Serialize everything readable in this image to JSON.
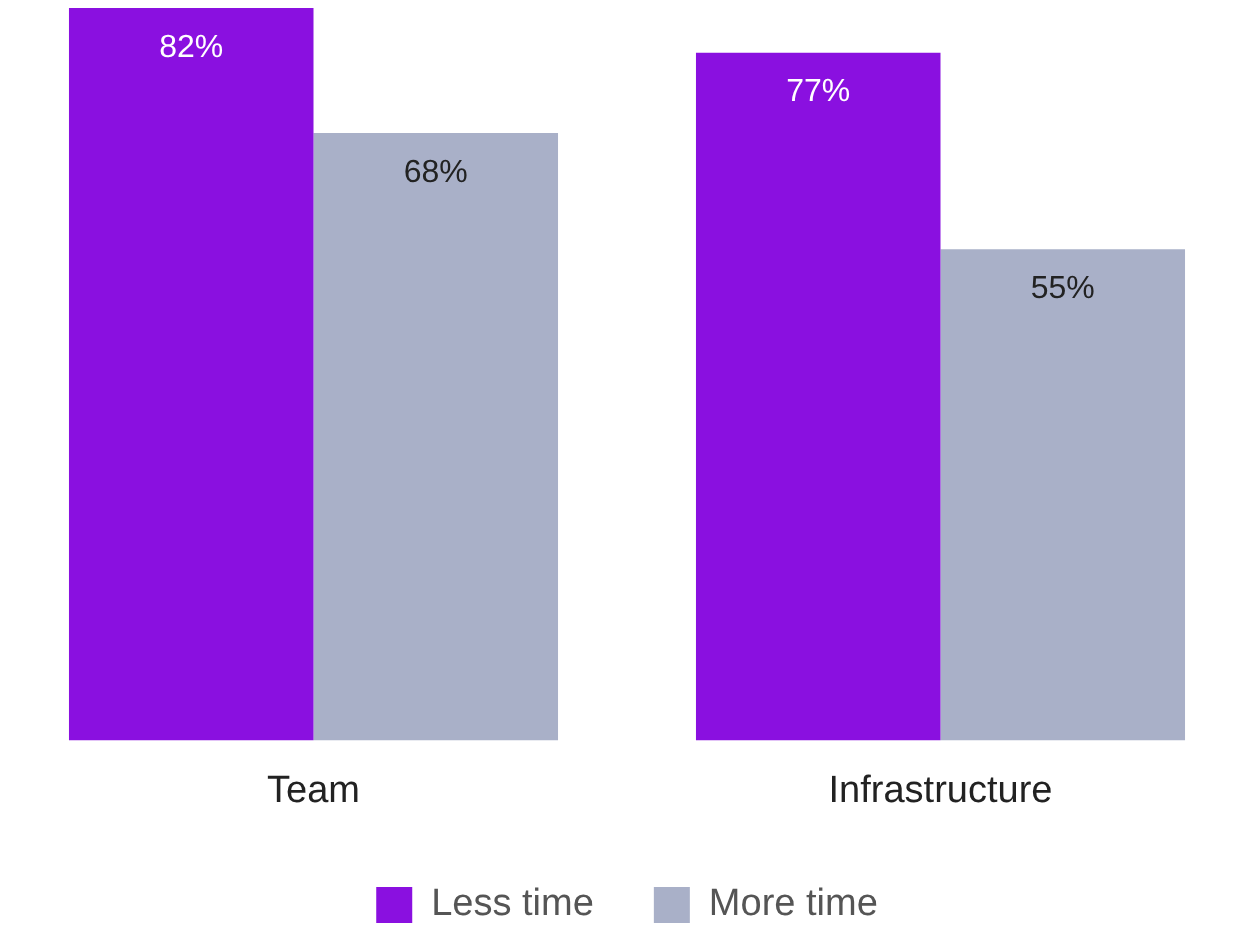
{
  "chart_data": {
    "type": "bar",
    "categories": [
      "Team",
      "Infrastructure"
    ],
    "series": [
      {
        "name": "Less time",
        "color": "#8a10e0",
        "values": [
          82,
          77
        ],
        "value_labels": [
          "82%",
          "77%"
        ]
      },
      {
        "name": "More time",
        "color": "#a9b0c8",
        "values": [
          68,
          55
        ],
        "value_labels": [
          "68%",
          "55%"
        ]
      }
    ],
    "legend": "bottom",
    "grid": false
  }
}
